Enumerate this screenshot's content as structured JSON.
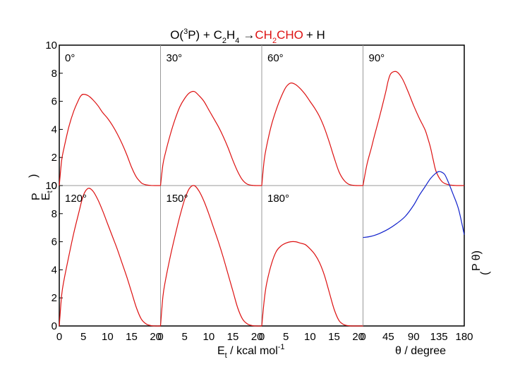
{
  "chart_data": {
    "type": "line",
    "title": {
      "part1": "O(",
      "sup": "3",
      "part2": "P) + C",
      "sub1": "2",
      "part3": "H",
      "sub2": "4",
      "arrow": "→",
      "red1": "CH",
      "redsub": "2",
      "red2": "CHO",
      "part4": "+ H"
    },
    "colors": {
      "energy_curve": "#dd1111",
      "angle_curve": "#1122cc",
      "title_product": "#dd1111",
      "frame": "#000000",
      "divider": "#999999"
    },
    "ylabel_left": {
      "p": "P",
      "e": "E",
      "paren": ")",
      "sub": "t"
    },
    "ylabel_right": {
      "p": "P",
      "theta": "θ)",
      "paren": "("
    },
    "xlabel_energy": {
      "e": "E",
      "sub": "t",
      "text": " / kcal mol",
      "sup": "-1"
    },
    "xlabel_angle": "θ / degree",
    "y_range": [
      0,
      10
    ],
    "y_ticks": [
      0,
      2,
      4,
      6,
      8,
      10
    ],
    "energy_x_range": [
      0,
      21
    ],
    "energy_x_ticks": [
      0,
      5,
      10,
      15,
      20
    ],
    "angle_x_range": [
      0,
      180
    ],
    "angle_x_ticks": [
      0,
      45,
      90,
      135,
      180
    ],
    "panels": [
      {
        "label": "0°",
        "row": 0,
        "col": 0,
        "x": [
          0,
          0.5,
          1,
          2,
          3,
          4,
          4.5,
          5,
          6,
          7,
          8,
          9,
          10,
          11,
          12,
          13,
          14,
          15,
          16,
          17,
          17.5,
          18,
          19,
          20,
          21
        ],
        "y": [
          0,
          1.8,
          2.7,
          4.2,
          5.3,
          6.1,
          6.4,
          6.5,
          6.4,
          6.1,
          5.7,
          5.2,
          4.8,
          4.3,
          3.7,
          3.0,
          2.2,
          1.3,
          0.6,
          0.2,
          0.1,
          0.05,
          0.01,
          0,
          0
        ]
      },
      {
        "label": "30°",
        "row": 0,
        "col": 1,
        "x": [
          0,
          0.5,
          1,
          2,
          3,
          4,
          5,
          6,
          7,
          8,
          9,
          10,
          11,
          12,
          13,
          14,
          15,
          16,
          17,
          18,
          19,
          20,
          21
        ],
        "y": [
          0,
          1.5,
          2.3,
          3.6,
          4.7,
          5.6,
          6.2,
          6.6,
          6.7,
          6.4,
          6.0,
          5.4,
          4.8,
          4.2,
          3.5,
          2.7,
          1.8,
          1.0,
          0.4,
          0.1,
          0.02,
          0,
          0
        ]
      },
      {
        "label": "60°",
        "row": 0,
        "col": 2,
        "x": [
          0,
          0.5,
          1,
          2,
          3,
          4,
          5,
          6,
          7,
          8,
          9,
          10,
          11,
          12,
          13,
          14,
          15,
          16,
          17,
          18,
          19,
          20,
          21
        ],
        "y": [
          0,
          1.8,
          2.8,
          4.3,
          5.4,
          6.3,
          7.0,
          7.3,
          7.2,
          6.9,
          6.5,
          6.0,
          5.5,
          4.9,
          4.1,
          3.1,
          2.0,
          1.0,
          0.4,
          0.1,
          0.02,
          0,
          0
        ]
      },
      {
        "label": "90°",
        "row": 0,
        "col": 3,
        "x": [
          0,
          7,
          15,
          20,
          30,
          40,
          45,
          50,
          60,
          70,
          80,
          90,
          100,
          110,
          115,
          120,
          125,
          130,
          140,
          150,
          160,
          170,
          180
        ],
        "y": [
          0,
          1.5,
          2.7,
          3.5,
          5.0,
          6.6,
          7.5,
          8.0,
          8.1,
          7.6,
          6.7,
          5.7,
          4.8,
          4.0,
          3.4,
          2.7,
          1.8,
          1.0,
          0.3,
          0.08,
          0.02,
          0,
          0
        ]
      },
      {
        "label": "120°",
        "row": 1,
        "col": 0,
        "x": [
          0,
          0.5,
          1,
          2,
          3,
          4,
          5,
          6,
          7,
          8,
          9,
          10,
          11,
          12,
          13,
          14,
          15,
          16,
          17,
          18,
          19,
          20,
          21
        ],
        "y": [
          0,
          2.2,
          3.3,
          5.0,
          6.6,
          8.0,
          9.3,
          9.8,
          9.6,
          9.0,
          8.2,
          7.3,
          6.4,
          5.5,
          4.5,
          3.5,
          2.4,
          1.3,
          0.5,
          0.15,
          0.03,
          0,
          0
        ]
      },
      {
        "label": "150°",
        "row": 1,
        "col": 1,
        "x": [
          0,
          0.5,
          1,
          2,
          3,
          4,
          5,
          6,
          7,
          8,
          9,
          10,
          11,
          12,
          13,
          14,
          15,
          16,
          17,
          18,
          19,
          20,
          21
        ],
        "y": [
          0,
          2.1,
          3.2,
          4.9,
          6.4,
          7.8,
          9.0,
          9.8,
          10.0,
          9.6,
          8.9,
          8.0,
          7.0,
          6.0,
          4.9,
          3.7,
          2.5,
          1.3,
          0.5,
          0.15,
          0.03,
          0,
          0
        ]
      },
      {
        "label": "180°",
        "row": 1,
        "col": 2,
        "x": [
          0,
          0.5,
          1,
          2,
          3,
          4,
          5,
          6,
          7,
          8,
          9,
          10,
          11,
          12,
          13,
          14,
          15,
          16,
          17,
          18,
          19,
          20,
          21
        ],
        "y": [
          0,
          1.8,
          3.0,
          4.4,
          5.3,
          5.7,
          5.9,
          6.0,
          6.0,
          5.9,
          5.8,
          5.5,
          5.1,
          4.5,
          3.6,
          2.4,
          1.2,
          0.4,
          0.1,
          0.02,
          0,
          0,
          0
        ]
      },
      {
        "label": "",
        "row": 1,
        "col": 3,
        "x": [
          0,
          10,
          20,
          30,
          45,
          60,
          75,
          90,
          100,
          110,
          120,
          130,
          135,
          140,
          145,
          150,
          160,
          170,
          180
        ],
        "y": [
          6.3,
          6.35,
          6.45,
          6.6,
          6.9,
          7.3,
          7.8,
          8.6,
          9.3,
          9.9,
          10.5,
          10.9,
          11.0,
          10.95,
          10.8,
          10.4,
          9.4,
          8.3,
          6.5
        ]
      }
    ]
  }
}
